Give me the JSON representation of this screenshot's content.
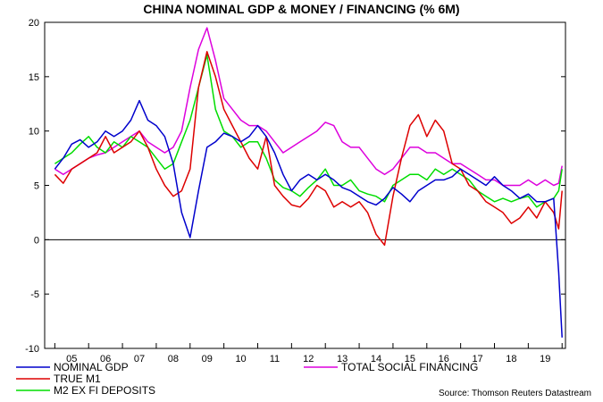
{
  "chart_data": {
    "type": "line",
    "title": "CHINA NOMINAL GDP & MONEY / FINANCING (% 6M)",
    "xlabel": "",
    "ylabel": "",
    "ylim": [
      -10,
      20
    ],
    "xlim": [
      2004.7,
      2020.1
    ],
    "yticks": [
      -10,
      -5,
      0,
      5,
      10,
      15,
      20
    ],
    "ytick_labels": [
      "-10",
      "-5",
      "0",
      "5",
      "10",
      "15",
      "20"
    ],
    "year_labels": [
      "05",
      "06",
      "07",
      "08",
      "09",
      "10",
      "11",
      "12",
      "13",
      "14",
      "15",
      "16",
      "17",
      "18",
      "19"
    ],
    "zero_line": true,
    "source": "Source: Thomson Reuters Datastream",
    "series": [
      {
        "name": "NOMINAL GDP",
        "color": "#0000cc",
        "x": [
          2005.0,
          2005.25,
          2005.5,
          2005.75,
          2006.0,
          2006.25,
          2006.5,
          2006.75,
          2007.0,
          2007.25,
          2007.5,
          2007.75,
          2008.0,
          2008.25,
          2008.5,
          2008.75,
          2009.0,
          2009.25,
          2009.5,
          2009.75,
          2010.0,
          2010.25,
          2010.5,
          2010.75,
          2011.0,
          2011.25,
          2011.5,
          2011.75,
          2012.0,
          2012.25,
          2012.5,
          2012.75,
          2013.0,
          2013.25,
          2013.5,
          2013.75,
          2014.0,
          2014.25,
          2014.5,
          2014.75,
          2015.0,
          2015.25,
          2015.5,
          2015.75,
          2016.0,
          2016.25,
          2016.5,
          2016.75,
          2017.0,
          2017.25,
          2017.5,
          2017.75,
          2018.0,
          2018.25,
          2018.5,
          2018.75,
          2019.0,
          2019.25,
          2019.5,
          2019.75,
          2019.9,
          2020.0
        ],
        "y": [
          6.5,
          7.5,
          8.8,
          9.2,
          8.5,
          9.0,
          10.0,
          9.5,
          10.0,
          11.0,
          12.8,
          11.0,
          10.5,
          9.5,
          7.0,
          2.5,
          0.2,
          4.5,
          8.5,
          9.0,
          9.8,
          9.5,
          9.0,
          9.5,
          10.5,
          9.5,
          8.0,
          6.0,
          4.5,
          5.5,
          6.0,
          5.5,
          6.0,
          5.5,
          4.8,
          4.5,
          4.0,
          3.5,
          3.2,
          3.8,
          4.8,
          4.2,
          3.5,
          4.5,
          5.0,
          5.5,
          5.5,
          5.8,
          6.5,
          6.0,
          5.5,
          5.0,
          5.8,
          5.0,
          4.5,
          3.8,
          4.2,
          3.5,
          3.5,
          3.8,
          -3.0,
          -9.0
        ]
      },
      {
        "name": "TRUE M1",
        "color": "#dd0000",
        "x": [
          2005.0,
          2005.25,
          2005.5,
          2005.75,
          2006.0,
          2006.25,
          2006.5,
          2006.75,
          2007.0,
          2007.25,
          2007.5,
          2007.75,
          2008.0,
          2008.25,
          2008.5,
          2008.75,
          2009.0,
          2009.25,
          2009.5,
          2009.75,
          2010.0,
          2010.25,
          2010.5,
          2010.75,
          2011.0,
          2011.25,
          2011.5,
          2011.75,
          2012.0,
          2012.25,
          2012.5,
          2012.75,
          2013.0,
          2013.25,
          2013.5,
          2013.75,
          2014.0,
          2014.25,
          2014.5,
          2014.75,
          2015.0,
          2015.25,
          2015.5,
          2015.75,
          2016.0,
          2016.25,
          2016.5,
          2016.75,
          2017.0,
          2017.25,
          2017.5,
          2017.75,
          2018.0,
          2018.25,
          2018.5,
          2018.75,
          2019.0,
          2019.25,
          2019.5,
          2019.75,
          2019.9,
          2020.0
        ],
        "y": [
          6.0,
          5.2,
          6.5,
          7.0,
          7.5,
          8.0,
          9.5,
          8.0,
          8.5,
          9.0,
          10.0,
          8.5,
          6.5,
          5.0,
          4.0,
          4.5,
          6.5,
          14.0,
          17.3,
          15.0,
          12.0,
          10.5,
          9.0,
          7.5,
          6.5,
          9.5,
          5.0,
          4.0,
          3.2,
          3.0,
          3.8,
          5.0,
          4.5,
          3.0,
          3.5,
          3.0,
          3.5,
          2.5,
          0.5,
          -0.5,
          4.0,
          7.5,
          10.5,
          11.5,
          9.5,
          11.0,
          10.0,
          7.0,
          6.5,
          5.0,
          4.5,
          3.5,
          3.0,
          2.5,
          1.5,
          2.0,
          3.0,
          2.0,
          3.5,
          2.5,
          1.0,
          4.5
        ]
      },
      {
        "name": "M2 EX FI DEPOSITS",
        "color": "#00dd00",
        "x": [
          2005.0,
          2005.25,
          2005.5,
          2005.75,
          2006.0,
          2006.25,
          2006.5,
          2006.75,
          2007.0,
          2007.25,
          2007.5,
          2007.75,
          2008.0,
          2008.25,
          2008.5,
          2008.75,
          2009.0,
          2009.25,
          2009.5,
          2009.75,
          2010.0,
          2010.25,
          2010.5,
          2010.75,
          2011.0,
          2011.25,
          2011.5,
          2011.75,
          2012.0,
          2012.25,
          2012.5,
          2012.75,
          2013.0,
          2013.25,
          2013.5,
          2013.75,
          2014.0,
          2014.25,
          2014.5,
          2014.75,
          2015.0,
          2015.25,
          2015.5,
          2015.75,
          2016.0,
          2016.25,
          2016.5,
          2016.75,
          2017.0,
          2017.25,
          2017.5,
          2017.75,
          2018.0,
          2018.25,
          2018.5,
          2018.75,
          2019.0,
          2019.25,
          2019.5,
          2019.75,
          2019.9,
          2020.0
        ],
        "y": [
          7.0,
          7.5,
          8.0,
          8.8,
          9.5,
          8.5,
          8.0,
          9.0,
          8.5,
          9.5,
          9.0,
          8.5,
          7.5,
          6.5,
          7.0,
          9.0,
          11.0,
          14.0,
          17.0,
          12.0,
          10.0,
          9.5,
          8.5,
          9.0,
          9.0,
          7.5,
          5.5,
          4.8,
          4.5,
          4.0,
          4.8,
          5.5,
          6.5,
          5.0,
          5.0,
          5.5,
          4.5,
          4.2,
          4.0,
          3.5,
          5.0,
          5.5,
          6.0,
          6.0,
          5.5,
          6.5,
          6.0,
          6.5,
          6.0,
          5.5,
          4.5,
          4.0,
          3.5,
          3.8,
          3.5,
          3.8,
          4.0,
          3.0,
          3.5,
          3.8,
          4.5,
          6.5
        ]
      },
      {
        "name": "TOTAL SOCIAL FINANCING",
        "color": "#dd00dd",
        "x": [
          2005.0,
          2005.25,
          2005.5,
          2005.75,
          2006.0,
          2006.25,
          2006.5,
          2006.75,
          2007.0,
          2007.25,
          2007.5,
          2007.75,
          2008.0,
          2008.25,
          2008.5,
          2008.75,
          2009.0,
          2009.25,
          2009.5,
          2009.75,
          2010.0,
          2010.25,
          2010.5,
          2010.75,
          2011.0,
          2011.25,
          2011.5,
          2011.75,
          2012.0,
          2012.25,
          2012.5,
          2012.75,
          2013.0,
          2013.25,
          2013.5,
          2013.75,
          2014.0,
          2014.25,
          2014.5,
          2014.75,
          2015.0,
          2015.25,
          2015.5,
          2015.75,
          2016.0,
          2016.25,
          2016.5,
          2016.75,
          2017.0,
          2017.25,
          2017.5,
          2017.75,
          2018.0,
          2018.25,
          2018.5,
          2018.75,
          2019.0,
          2019.25,
          2019.5,
          2019.75,
          2019.9,
          2020.0
        ],
        "y": [
          6.5,
          6.0,
          6.5,
          7.0,
          7.5,
          7.8,
          8.0,
          8.5,
          9.0,
          9.5,
          10.0,
          9.0,
          8.5,
          8.0,
          8.5,
          10.0,
          14.0,
          17.5,
          19.5,
          16.5,
          13.0,
          12.0,
          11.0,
          10.5,
          10.5,
          10.0,
          9.0,
          8.0,
          8.5,
          9.0,
          9.5,
          10.0,
          10.8,
          10.5,
          9.0,
          8.5,
          8.5,
          7.5,
          6.5,
          6.0,
          6.5,
          7.5,
          8.5,
          8.5,
          8.0,
          8.0,
          7.5,
          7.0,
          7.0,
          6.5,
          6.0,
          5.5,
          5.5,
          5.0,
          5.0,
          5.0,
          5.5,
          5.0,
          5.5,
          5.0,
          5.2,
          6.8
        ]
      }
    ]
  }
}
